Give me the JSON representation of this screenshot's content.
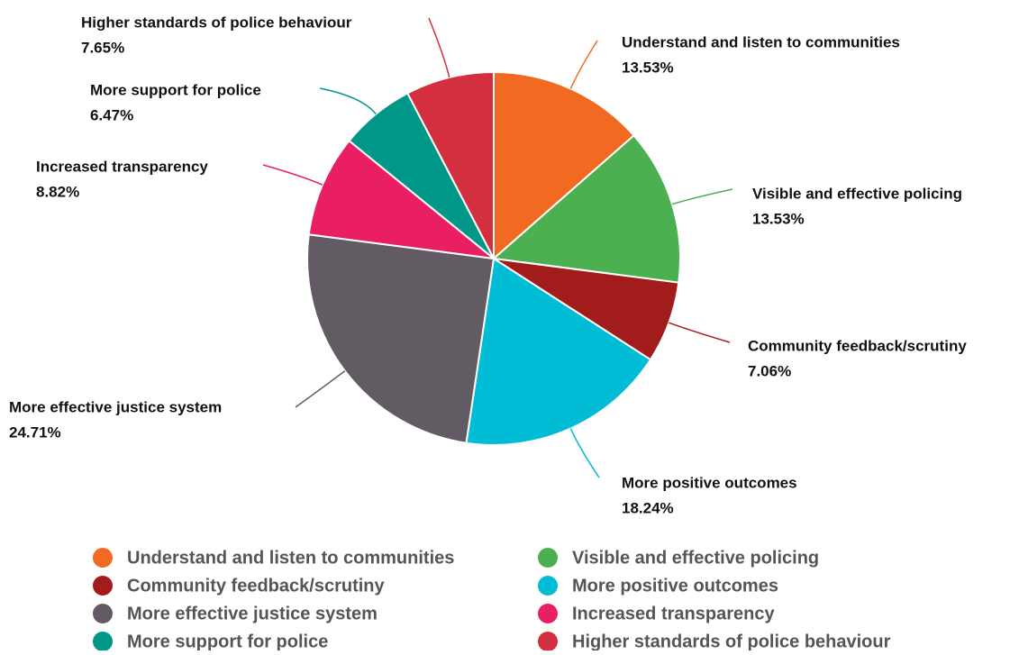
{
  "chart_data": {
    "type": "pie",
    "categories": [
      "Understand and listen to communities",
      "Visible and effective policing",
      "Community feedback/scrutiny",
      "More positive outcomes",
      "More effective justice system",
      "Increased transparency",
      "More support for police",
      "Higher standards of police behaviour"
    ],
    "values": [
      13.53,
      13.53,
      7.06,
      18.24,
      24.71,
      8.82,
      6.47,
      7.65
    ],
    "value_labels": [
      "13.53%",
      "13.53%",
      "7.06%",
      "18.24%",
      "24.71%",
      "8.82%",
      "6.47%",
      "7.65%"
    ],
    "colors": [
      "#f26a21",
      "#4caf50",
      "#a31c1c",
      "#00bcd4",
      "#625b63",
      "#e91e63",
      "#009688",
      "#d32f3f"
    ],
    "legend": "bottom"
  }
}
